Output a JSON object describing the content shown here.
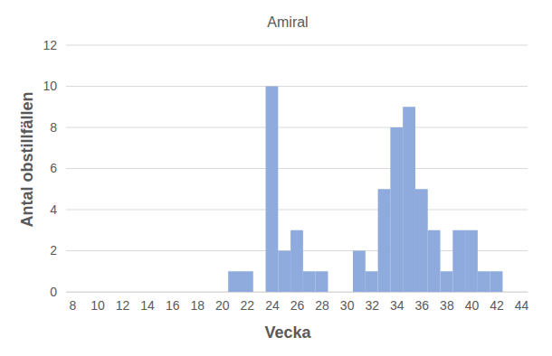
{
  "chart_data": {
    "type": "histogram",
    "title": "Amiral",
    "x_label": "Vecka",
    "y_label": "Antal obstillfällen",
    "bins": [
      20.5,
      21.5,
      22.5,
      23.5,
      24.5,
      25.5,
      26.5,
      27.5,
      28.5,
      29.5,
      30.5,
      31.5,
      32.5,
      33.5,
      34.5,
      35.5,
      36.5,
      37.5,
      38.5,
      39.5,
      40.5,
      41.5,
      42.5
    ],
    "values": [
      1,
      1,
      0,
      10,
      2,
      3,
      1,
      1,
      0,
      0,
      2,
      1,
      5,
      8,
      9,
      5,
      3,
      1,
      3,
      3,
      1,
      1
    ],
    "color": "#8faadc",
    "xlim": [
      7.5,
      44.5
    ],
    "xticks": [
      8,
      10,
      12,
      14,
      16,
      18,
      20,
      22,
      24,
      26,
      28,
      30,
      32,
      34,
      36,
      38,
      40,
      42,
      44
    ],
    "ylim": [
      0,
      12
    ],
    "yticks": [
      0,
      2,
      4,
      6,
      8,
      10,
      12
    ],
    "grid": true
  }
}
